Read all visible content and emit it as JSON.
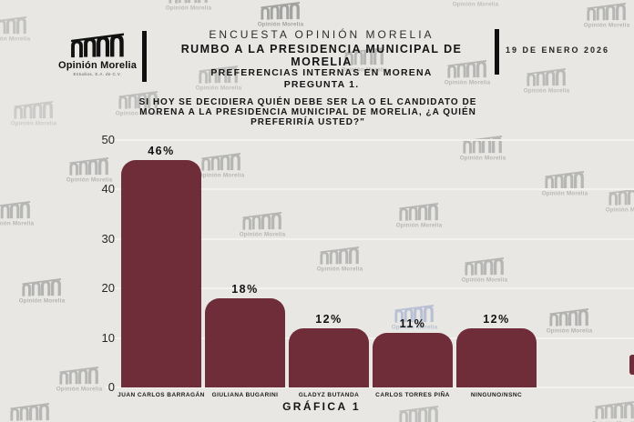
{
  "page": {
    "background": "#e8e7e4",
    "accent": "#6e2d38",
    "watermark_text": "Opinión Morelia"
  },
  "header": {
    "brand_name": "Opinión Morelia",
    "brand_tagline": "Estudios, S.A. de C.V.",
    "title_line1": "ENCUESTA OPINIÓN MORELIA",
    "title_line2": "RUMBO A LA PRESIDENCIA MUNICIPAL DE MORELIA",
    "date": "19 DE ENERO 2026"
  },
  "subtitle": {
    "line1": "PREFERENCIAS INTERNAS EN MORENA",
    "line2": "PREGUNTA 1."
  },
  "question": {
    "line1": "SI HOY SE DECIDIERA QUIÉN DEBE SER LA O EL CANDIDATO DE",
    "line2": "MORENA A LA PRESIDENCIA MUNICIPAL DE MORELIA, ¿A QUIÉN",
    "line3": "PREFERIRÍA USTED?\""
  },
  "chart_data": {
    "type": "bar",
    "title": "GRÁFICA 1",
    "categories": [
      "JUAN CARLOS BARRAGÁN",
      "GIULIANA BUGARINI",
      "GLADYZ BUTANDA",
      "CARLOS TORRES PIÑA",
      "NINGUNO/NSNC"
    ],
    "values": [
      46,
      18,
      12,
      11,
      12
    ],
    "value_labels": [
      "46%",
      "18%",
      "12%",
      "11%",
      "12%"
    ],
    "xlabel": "",
    "ylabel": "",
    "ylim": [
      0,
      50
    ],
    "yticks": [
      0,
      10,
      20,
      30,
      40,
      50
    ],
    "bar_color": "#6e2d38",
    "grid": true,
    "legend": false
  },
  "caption": "GRÁFICA 1"
}
